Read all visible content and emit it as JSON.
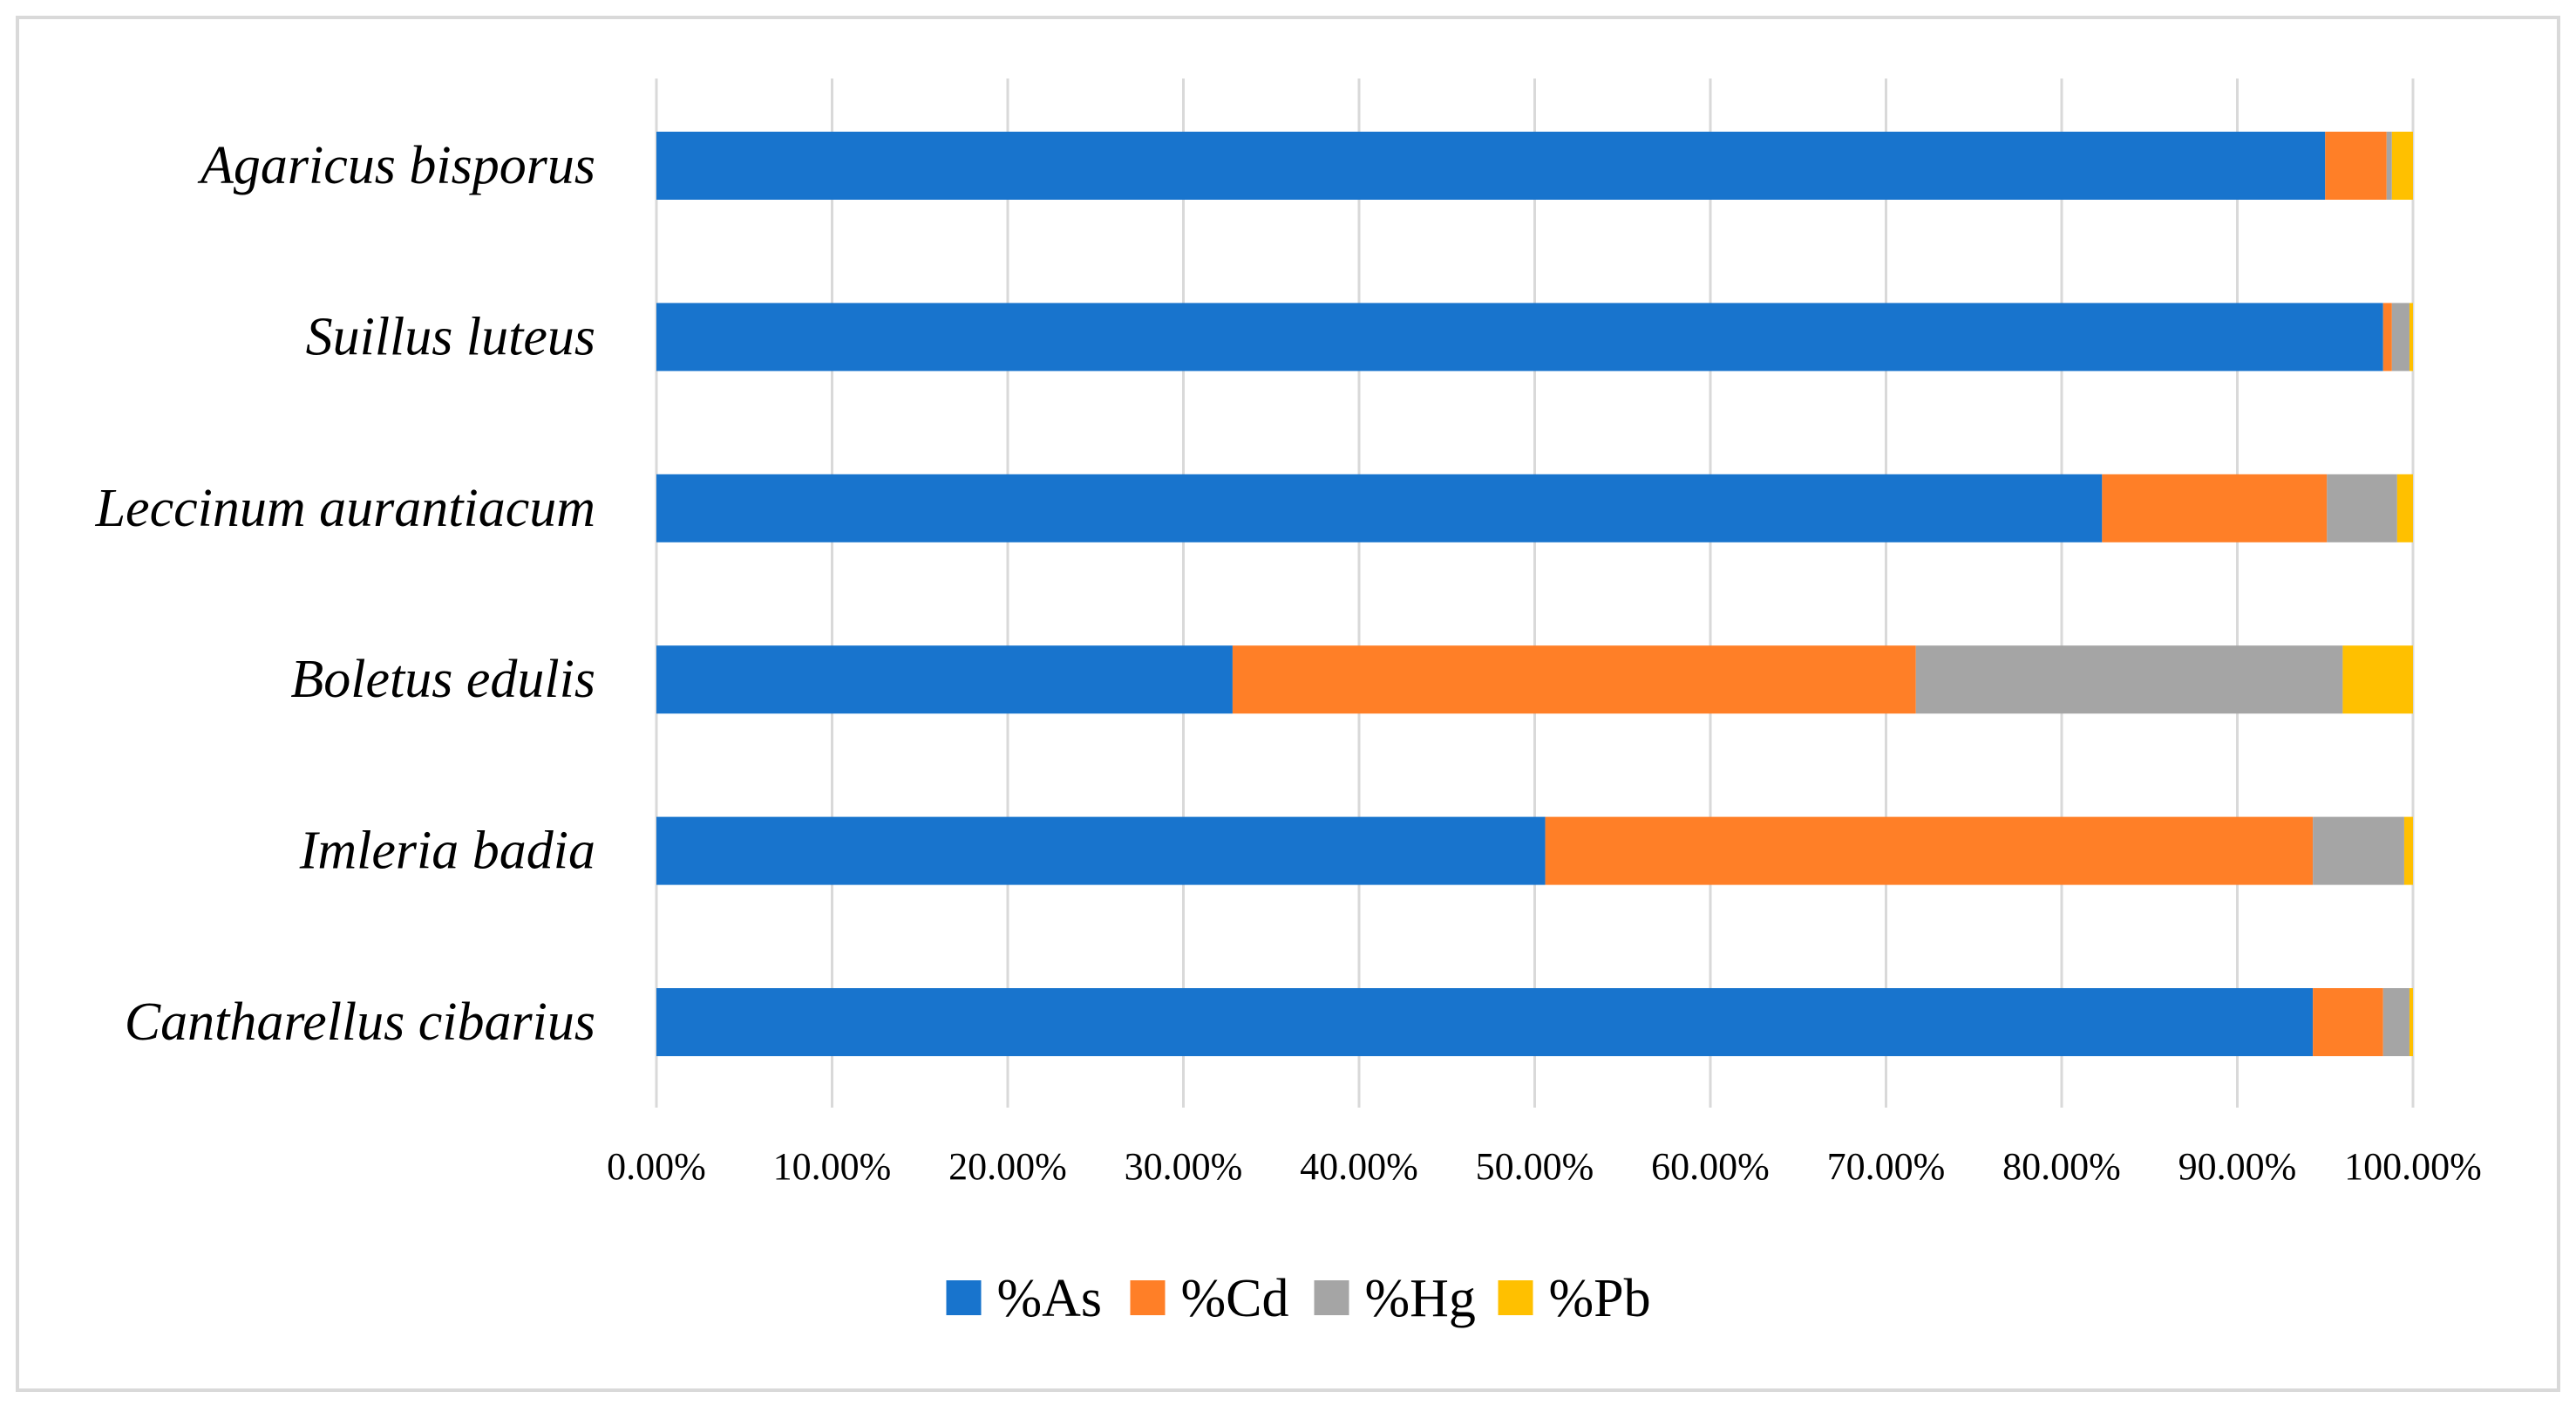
{
  "chart_data": {
    "type": "bar",
    "orientation": "horizontal",
    "stacked": true,
    "categories": [
      "Agaricus bisporus",
      "Suillus luteus",
      "Leccinum aurantiacum",
      "Boletus edulis",
      "Imleria badia",
      "Cantharellus cibarius"
    ],
    "series": [
      {
        "name": "%As",
        "color": "#1874CD",
        "values": [
          95.0,
          98.3,
          82.3,
          32.8,
          50.6,
          94.3
        ]
      },
      {
        "name": "%Cd",
        "color": "#FF7F27",
        "values": [
          3.5,
          0.5,
          12.8,
          38.9,
          43.7,
          4.0
        ]
      },
      {
        "name": "%Hg",
        "color": "#A5A5A5",
        "values": [
          0.3,
          1.0,
          4.0,
          24.3,
          5.2,
          1.5
        ]
      },
      {
        "name": "%Pb",
        "color": "#FFC000",
        "values": [
          1.2,
          0.2,
          0.9,
          4.0,
          0.5,
          0.2
        ]
      }
    ],
    "xlim": [
      0,
      100
    ],
    "xticks": [
      0,
      10,
      20,
      30,
      40,
      50,
      60,
      70,
      80,
      90,
      100
    ],
    "xtick_labels": [
      "0.00%",
      "10.00%",
      "20.00%",
      "30.00%",
      "40.00%",
      "50.00%",
      "60.00%",
      "70.00%",
      "80.00%",
      "90.00%",
      "100.00%"
    ],
    "grid": true,
    "legend_position": "bottom",
    "title": "",
    "xlabel": "",
    "ylabel": ""
  }
}
